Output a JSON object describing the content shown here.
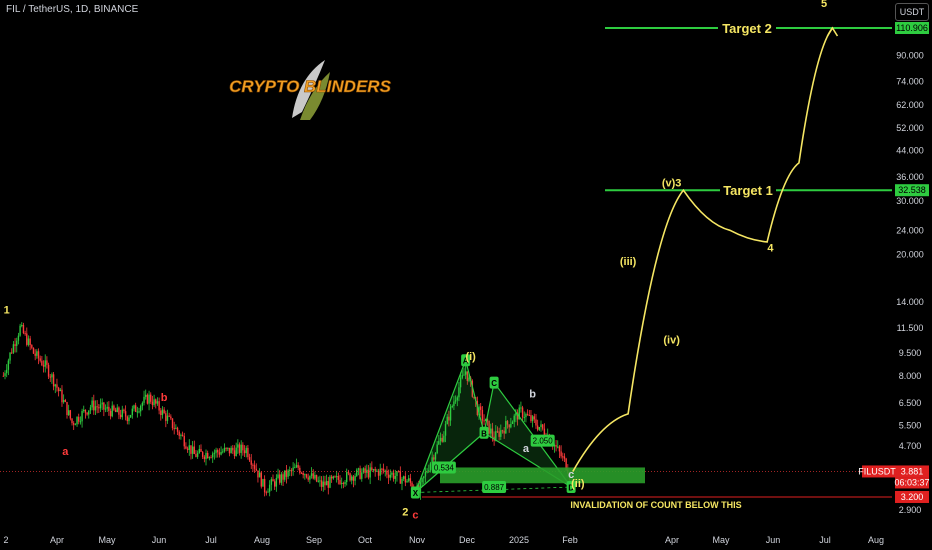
{
  "header": {
    "symbol_line": "FIL / TetherUS, 1D, BINANCE",
    "currency": "USDT"
  },
  "logo": {
    "text": "CRYPTO BLINDERS"
  },
  "chart_data": {
    "type": "candlestick",
    "x_ticks": [
      "2",
      "Apr",
      "May",
      "Jun",
      "Jul",
      "Aug",
      "Sep",
      "Oct",
      "Nov",
      "Dec",
      "2025",
      "Feb",
      "Apr",
      "May",
      "Jun",
      "Jul",
      "Aug"
    ],
    "y_ticks": [
      "110.906",
      "90.000",
      "74.000",
      "62.000",
      "52.000",
      "44.000",
      "36.000",
      "32.538",
      "30.000",
      "24.000",
      "20.000",
      "14.000",
      "11.500",
      "9.500",
      "8.000",
      "6.500",
      "5.500",
      "4.700",
      "3.881",
      "3.200",
      "2.900"
    ],
    "y_scale": "log",
    "price_series": [
      {
        "date": "2024-03-02",
        "close": 8.0
      },
      {
        "date": "2024-03-12",
        "close": 11.5
      },
      {
        "date": "2024-03-20",
        "close": 9.5
      },
      {
        "date": "2024-03-28",
        "close": 8.5
      },
      {
        "date": "2024-04-12",
        "close": 5.6
      },
      {
        "date": "2024-04-24",
        "close": 6.4
      },
      {
        "date": "2024-05-15",
        "close": 5.9
      },
      {
        "date": "2024-05-28",
        "close": 6.8
      },
      {
        "date": "2024-06-10",
        "close": 5.6
      },
      {
        "date": "2024-06-24",
        "close": 4.4
      },
      {
        "date": "2024-07-08",
        "close": 4.5
      },
      {
        "date": "2024-07-25",
        "close": 4.6
      },
      {
        "date": "2024-08-05",
        "close": 3.4
      },
      {
        "date": "2024-08-25",
        "close": 4.0
      },
      {
        "date": "2024-09-08",
        "close": 3.5
      },
      {
        "date": "2024-09-28",
        "close": 3.8
      },
      {
        "date": "2024-10-15",
        "close": 3.9
      },
      {
        "date": "2024-10-30",
        "close": 3.6
      },
      {
        "date": "2024-11-05",
        "close": 3.3
      },
      {
        "date": "2024-11-20",
        "close": 5.2
      },
      {
        "date": "2024-12-03",
        "close": 8.3
      },
      {
        "date": "2024-12-10",
        "close": 6.2
      },
      {
        "date": "2024-12-20",
        "close": 5.0
      },
      {
        "date": "2025-01-05",
        "close": 6.1
      },
      {
        "date": "2025-01-20",
        "close": 5.2
      },
      {
        "date": "2025-02-03",
        "close": 3.9
      }
    ],
    "levels": [
      {
        "label": "Target 2",
        "price": 110.906,
        "color": "#2ecc40"
      },
      {
        "label": "Target 1",
        "price": 32.538,
        "color": "#2ecc40"
      },
      {
        "label": "",
        "price": 3.2,
        "color": "#e02020"
      }
    ],
    "current_price": {
      "symbol": "FILUSDT",
      "price": "3.881",
      "countdown": "06:03:37"
    },
    "projection": [
      {
        "date": "2025-02-05",
        "price": 3.881
      },
      {
        "date": "2025-03-10",
        "price": 6.0
      },
      {
        "date": "2025-04-12",
        "price": 32.538
      },
      {
        "date": "2025-05-10",
        "price": 24.0
      },
      {
        "date": "2025-06-01",
        "price": 22.0
      },
      {
        "date": "2025-06-20",
        "price": 40.0
      },
      {
        "date": "2025-07-10",
        "price": 110.906
      }
    ],
    "wave_labels": [
      {
        "text": "1",
        "color": "#f5e663",
        "date": "2024-03-04",
        "price": 12.8
      },
      {
        "text": "a",
        "color": "#ff3b3b",
        "date": "2024-04-08",
        "price": 4.4
      },
      {
        "text": "b",
        "color": "#ff3b3b",
        "date": "2024-06-06",
        "price": 6.6
      },
      {
        "text": "2",
        "color": "#f5e663",
        "date": "2024-10-28",
        "price": 2.78
      },
      {
        "text": "c",
        "color": "#ff3b3b",
        "date": "2024-11-03",
        "price": 2.72
      },
      {
        "text": "(i)",
        "color": "#f5e663",
        "date": "2024-12-06",
        "price": 9.0
      },
      {
        "text": "b",
        "color": "#d1d4dc",
        "date": "2025-01-12",
        "price": 6.8
      },
      {
        "text": "a",
        "color": "#d1d4dc",
        "date": "2025-01-08",
        "price": 4.5
      },
      {
        "text": "c",
        "color": "#d1d4dc",
        "date": "2025-02-04",
        "price": 3.7
      },
      {
        "text": "(ii)",
        "color": "#f5e663",
        "date": "2025-02-08",
        "price": 3.45
      },
      {
        "text": "(iii)",
        "color": "#f5e663",
        "date": "2025-03-10",
        "price": 18.5
      },
      {
        "text": "(iv)",
        "color": "#f5e663",
        "date": "2025-04-05",
        "price": 10.2
      },
      {
        "text": "(v)3",
        "color": "#f5e663",
        "date": "2025-04-05",
        "price": 33.5
      },
      {
        "text": "4",
        "color": "#f5e663",
        "date": "2025-06-03",
        "price": 20.5
      },
      {
        "text": "5",
        "color": "#f5e663",
        "date": "2025-07-05",
        "price": 130.0
      }
    ],
    "xabcd": [
      {
        "text": "X",
        "date": "2024-11-03",
        "price": 3.31
      },
      {
        "text": "A",
        "date": "2024-12-03",
        "price": 9.0
      },
      {
        "text": "B",
        "date": "2024-12-14",
        "price": 5.2
      },
      {
        "text": "C",
        "date": "2024-12-20",
        "price": 7.6
      },
      {
        "text": "D",
        "date": "2025-02-04",
        "price": 3.45
      }
    ],
    "ratios": [
      {
        "text": "0.534",
        "date": "2024-11-20",
        "price": 4.0
      },
      {
        "text": "2.050",
        "date": "2025-01-18",
        "price": 4.9
      },
      {
        "text": "0.887",
        "date": "2024-12-20",
        "price": 3.45
      }
    ],
    "annotations": [
      {
        "text": "INVALIDATION OF COUNT BELOW THIS",
        "color": "#f5e663"
      }
    ]
  }
}
